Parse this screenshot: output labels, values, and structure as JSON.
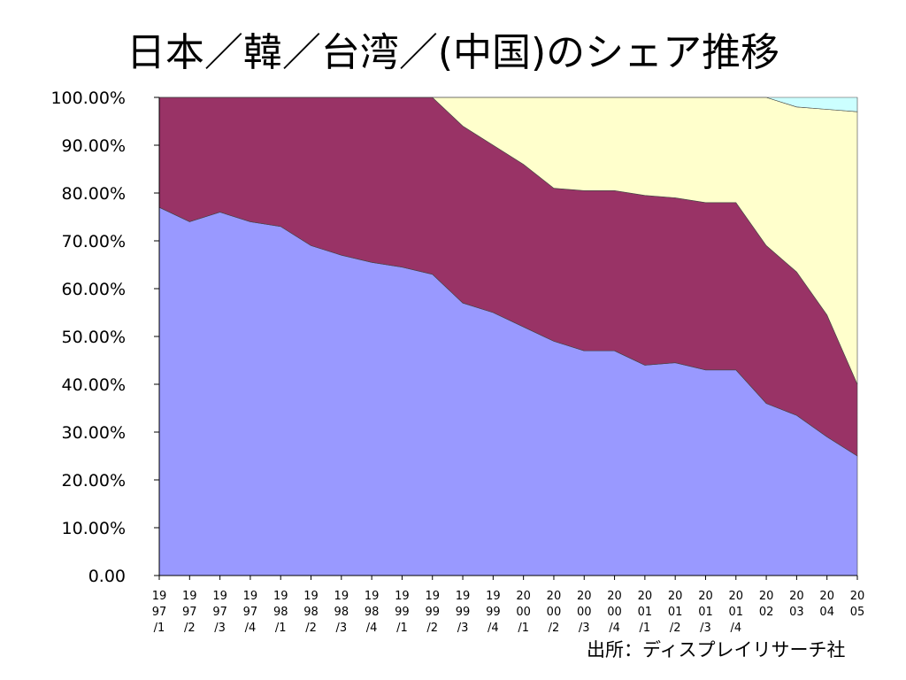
{
  "title": "日本／韓／台湾／(中国)のシェア推移",
  "source": "出所：ディスプレイリサーチ社",
  "chart_data": {
    "type": "area",
    "stacked": true,
    "categories": [
      [
        "19",
        "97",
        "/1"
      ],
      [
        "19",
        "97",
        "/2"
      ],
      [
        "19",
        "97",
        "/3"
      ],
      [
        "19",
        "97",
        "/4"
      ],
      [
        "19",
        "98",
        "/1"
      ],
      [
        "19",
        "98",
        "/2"
      ],
      [
        "19",
        "98",
        "/3"
      ],
      [
        "19",
        "98",
        "/4"
      ],
      [
        "19",
        "99",
        "/1"
      ],
      [
        "19",
        "99",
        "/2"
      ],
      [
        "19",
        "99",
        "/3"
      ],
      [
        "19",
        "99",
        "/4"
      ],
      [
        "20",
        "00",
        "/1"
      ],
      [
        "20",
        "00",
        "/2"
      ],
      [
        "20",
        "00",
        "/3"
      ],
      [
        "20",
        "00",
        "/4"
      ],
      [
        "20",
        "01",
        "/1"
      ],
      [
        "20",
        "01",
        "/2"
      ],
      [
        "20",
        "01",
        "/3"
      ],
      [
        "20",
        "01",
        "/4"
      ],
      [
        "20",
        "02"
      ],
      [
        "20",
        "03"
      ],
      [
        "20",
        "04"
      ],
      [
        "20",
        "05"
      ]
    ],
    "y_ticks": [
      "0.00",
      "10.00%",
      "20.00%",
      "30.00%",
      "40.00%",
      "50.00%",
      "60.00%",
      "70.00%",
      "80.00%",
      "90.00%",
      "100.00%"
    ],
    "ylim": [
      0,
      100
    ],
    "series": [
      {
        "color": "#9999ff",
        "values": [
          77,
          74,
          76,
          74,
          73,
          69,
          67,
          65.5,
          64.5,
          63,
          57,
          55,
          52,
          49,
          47,
          47,
          44,
          44.5,
          43,
          43,
          36,
          33.5,
          29,
          25
        ]
      },
      {
        "color": "#993366",
        "values": [
          23,
          26,
          24,
          26,
          27,
          31,
          33,
          34.5,
          35.5,
          37,
          37,
          35,
          34,
          32,
          33.5,
          33.5,
          35.5,
          34.5,
          35,
          35,
          33,
          30,
          25.5,
          15
        ]
      },
      {
        "color": "#ffffcc",
        "values": [
          0,
          0,
          0,
          0,
          0,
          0,
          0,
          0,
          0,
          0,
          6,
          10,
          14,
          19,
          19.5,
          19.5,
          20.5,
          21,
          22,
          22,
          31,
          34.5,
          43,
          57
        ]
      },
      {
        "color": "#ccffff",
        "values": [
          0,
          0,
          0,
          0,
          0,
          0,
          0,
          0,
          0,
          0,
          0,
          0,
          0,
          0,
          0,
          0,
          0,
          0,
          0,
          0,
          0,
          2,
          2.5,
          3
        ]
      }
    ],
    "grid": false,
    "legend": "none"
  }
}
